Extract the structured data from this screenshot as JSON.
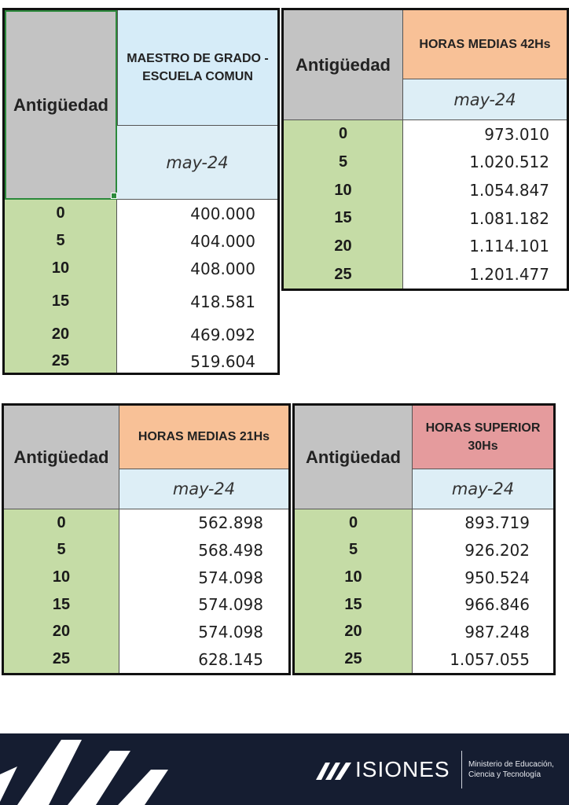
{
  "tables": [
    {
      "antiguedad_label": "Antigüedad",
      "header": "MAESTRO DE GRADO - ESCUELA COMUN",
      "date": "may-24",
      "rows": [
        {
          "years": "0",
          "value": "400.000"
        },
        {
          "years": "5",
          "value": "404.000"
        },
        {
          "years": "10",
          "value": "408.000"
        },
        {
          "years": "15",
          "value": "418.581"
        },
        {
          "years": "20",
          "value": "469.092"
        },
        {
          "years": "25",
          "value": "519.604"
        }
      ]
    },
    {
      "antiguedad_label": "Antigüedad",
      "header": "HORAS MEDIAS 42Hs",
      "date": "may-24",
      "rows": [
        {
          "years": "0",
          "value": "973.010"
        },
        {
          "years": "5",
          "value": "1.020.512"
        },
        {
          "years": "10",
          "value": "1.054.847"
        },
        {
          "years": "15",
          "value": "1.081.182"
        },
        {
          "years": "20",
          "value": "1.114.101"
        },
        {
          "years": "25",
          "value": "1.201.477"
        }
      ]
    },
    {
      "antiguedad_label": "Antigüedad",
      "header": "HORAS MEDIAS 21Hs",
      "date": "may-24",
      "rows": [
        {
          "years": "0",
          "value": "562.898"
        },
        {
          "years": "5",
          "value": "568.498"
        },
        {
          "years": "10",
          "value": "574.098"
        },
        {
          "years": "15",
          "value": "574.098"
        },
        {
          "years": "20",
          "value": "574.098"
        },
        {
          "years": "25",
          "value": "628.145"
        }
      ]
    },
    {
      "antiguedad_label": "Antigüedad",
      "header": "HORAS SUPERIOR 30Hs",
      "date": "may-24",
      "rows": [
        {
          "years": "0",
          "value": "893.719"
        },
        {
          "years": "5",
          "value": "926.202"
        },
        {
          "years": "10",
          "value": "950.524"
        },
        {
          "years": "15",
          "value": "966.846"
        },
        {
          "years": "20",
          "value": "987.248"
        },
        {
          "years": "25",
          "value": "1.057.055"
        }
      ]
    }
  ],
  "colors": {
    "antiguedad_header": "#c3c3c3",
    "years_column": "#c5dca6",
    "date_row": "#ddeef6",
    "header_maestro": "#d6ecf8",
    "header_horas_medias": "#f8c197",
    "header_horas_superior": "#e59b9d",
    "selection_border": "#2c8a3c",
    "footer_background": "#151d31"
  },
  "footer": {
    "brand_name": "ISIONES",
    "brand_icon": "misiones-m-logo-icon",
    "ministry_line1": "Ministerio de Educación,",
    "ministry_line2": "Ciencia y Tecnología"
  }
}
